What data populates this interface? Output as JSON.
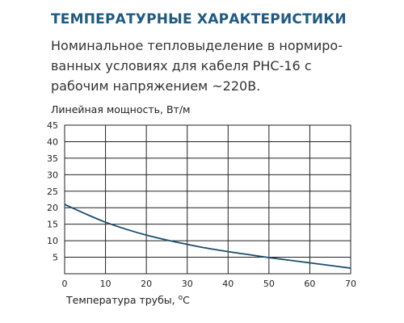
{
  "header": {
    "title": "ТЕМПЕРАТУРНЫЕ ХАРАКТЕРИСТИКИ",
    "description_lines": [
      "Номинальное тепловыделение в нормиро-",
      "ванных условиях для кабеля РНС-16 с",
      "рабочим напряжением ~220В."
    ]
  },
  "colors": {
    "heading": "#1f5a80",
    "curve": "#1b4f6e",
    "grid": "#222222"
  },
  "chart_data": {
    "type": "line",
    "title": "",
    "ylabel": "Линейная мощность, Вт/м",
    "xlabel_main": "Температура трубы, ",
    "xlabel_sup": "o",
    "xlabel_unit": "C",
    "xlim": [
      0,
      70
    ],
    "ylim": [
      0,
      45
    ],
    "xticks": [
      0,
      10,
      20,
      30,
      40,
      50,
      60,
      70
    ],
    "yticks": [
      5,
      10,
      15,
      20,
      25,
      30,
      35,
      40,
      45
    ],
    "grid": true,
    "series": [
      {
        "x": [
          0,
          5,
          10,
          15,
          20,
          25,
          30,
          35,
          40,
          45,
          50,
          55,
          60,
          65,
          70
        ],
        "y": [
          21,
          18.2,
          15.6,
          13.5,
          11.7,
          10.2,
          8.9,
          7.7,
          6.7,
          5.8,
          4.9,
          4.1,
          3.3,
          2.5,
          1.7
        ]
      }
    ]
  }
}
